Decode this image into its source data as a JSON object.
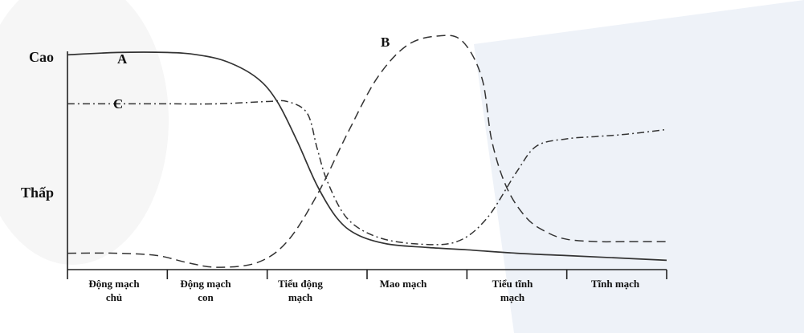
{
  "chart_data": {
    "type": "line",
    "title": "",
    "xlabel": "",
    "ylabel": "",
    "y_ticks": [
      "Cao",
      "Thấp"
    ],
    "categories": [
      [
        "Động mạch",
        "chủ"
      ],
      [
        "Động mạch",
        "con"
      ],
      [
        "Tiểu động",
        "mạch"
      ],
      [
        "Mao mạch"
      ],
      [
        "Tiểu tĩnh",
        "mạch"
      ],
      [
        "Tĩnh mạch"
      ]
    ],
    "x_range": [
      0,
      6
    ],
    "ylim": [
      0,
      1
    ],
    "grid": false,
    "series": [
      {
        "name": "A",
        "style": "solid",
        "x": [
          0,
          0.5,
          1.0,
          1.3,
          1.6,
          1.9,
          2.1,
          2.3,
          2.5,
          2.7,
          2.9,
          3.2,
          3.6,
          4.0,
          4.5,
          5.0,
          5.5,
          6.0
        ],
        "y": [
          0.92,
          0.93,
          0.93,
          0.92,
          0.89,
          0.82,
          0.72,
          0.55,
          0.36,
          0.22,
          0.15,
          0.11,
          0.095,
          0.085,
          0.07,
          0.06,
          0.05,
          0.04
        ]
      },
      {
        "name": "B",
        "style": "dashed",
        "x": [
          0,
          0.5,
          0.9,
          1.2,
          1.5,
          1.9,
          2.2,
          2.5,
          2.8,
          3.1,
          3.4,
          3.7,
          3.95,
          4.15,
          4.25,
          4.4,
          4.6,
          4.8,
          5.0,
          5.3,
          5.6,
          6.0
        ],
        "y": [
          0.07,
          0.07,
          0.06,
          0.03,
          0.01,
          0.03,
          0.12,
          0.32,
          0.58,
          0.82,
          0.96,
          1.0,
          0.98,
          0.82,
          0.55,
          0.35,
          0.22,
          0.16,
          0.13,
          0.12,
          0.12,
          0.12
        ]
      },
      {
        "name": "C",
        "style": "dash-dot",
        "x": [
          0,
          0.5,
          1.0,
          1.5,
          2.0,
          2.2,
          2.4,
          2.5,
          2.6,
          2.8,
          3.1,
          3.5,
          3.9,
          4.2,
          4.5,
          4.7,
          5.0,
          5.3,
          5.6,
          6.0
        ],
        "y": [
          0.71,
          0.71,
          0.71,
          0.71,
          0.72,
          0.72,
          0.67,
          0.52,
          0.38,
          0.22,
          0.14,
          0.11,
          0.12,
          0.22,
          0.42,
          0.53,
          0.56,
          0.57,
          0.58,
          0.6
        ]
      }
    ]
  }
}
